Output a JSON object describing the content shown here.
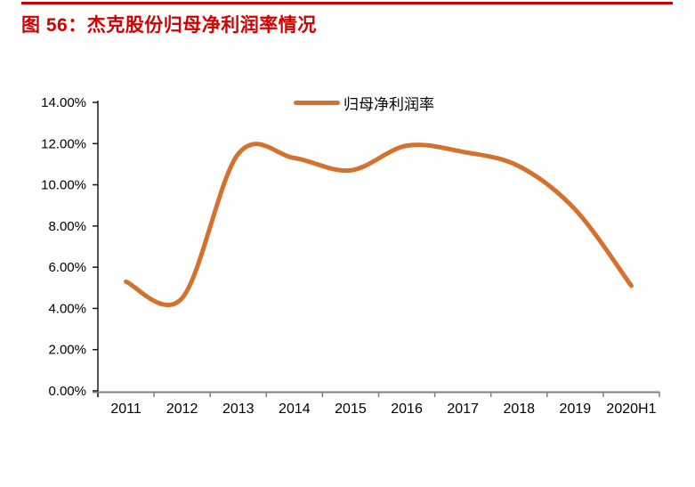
{
  "page": {
    "figure_title": "图 56：杰克股份归母净利润率情况"
  },
  "legend": {
    "label": "归母净利润率"
  },
  "colors": {
    "title_red": "#D40000",
    "rule_red": "#C80000",
    "series_orange": "#D2722E",
    "axis_dark": "#1A1A1A",
    "axis_gray": "#808080"
  },
  "chart_data": {
    "type": "line",
    "title": "图 56：杰克股份归母净利润率情况",
    "categories": [
      "2011",
      "2012",
      "2013",
      "2014",
      "2015",
      "2016",
      "2017",
      "2018",
      "2019",
      "2020H1"
    ],
    "series": [
      {
        "name": "归母净利润率",
        "unit": "%",
        "values": [
          5.3,
          4.5,
          11.5,
          11.3,
          10.7,
          11.9,
          11.6,
          10.9,
          8.8,
          5.1
        ]
      }
    ],
    "ylim": [
      0,
      14
    ],
    "ytick_step": 2,
    "ytick_labels": [
      "0.00%",
      "2.00%",
      "4.00%",
      "6.00%",
      "8.00%",
      "10.00%",
      "12.00%",
      "14.00%"
    ],
    "grid": false,
    "smooth": true,
    "legend_position": "top-center"
  }
}
